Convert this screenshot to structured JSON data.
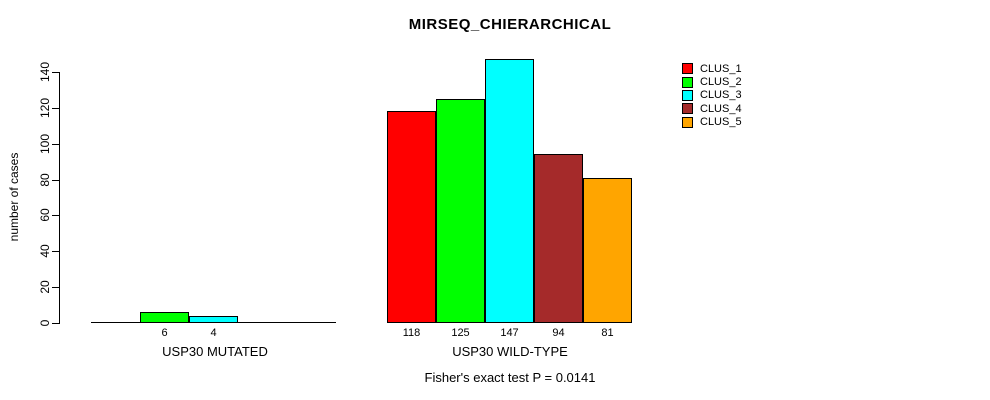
{
  "title": "MIRSEQ_CHIERARCHICAL",
  "footnote": "Fisher's exact test P = 0.0141",
  "y_axis": {
    "label": "number of cases"
  },
  "legend": {
    "position": "topright",
    "items": [
      {
        "label": "CLUS_1",
        "color": "#FF0000"
      },
      {
        "label": "CLUS_2",
        "color": "#00FF00"
      },
      {
        "label": "CLUS_3",
        "color": "#00FFFF"
      },
      {
        "label": "CLUS_4",
        "color": "#A52A2A"
      },
      {
        "label": "CLUS_5",
        "color": "#FFA500"
      }
    ]
  },
  "chart_data": {
    "type": "bar",
    "title": "MIRSEQ_CHIERARCHICAL",
    "categories": [
      "USP30 MUTATED",
      "USP30 WILD-TYPE"
    ],
    "series": [
      {
        "name": "CLUS_1",
        "color": "#FF0000",
        "values": [
          0,
          118
        ]
      },
      {
        "name": "CLUS_2",
        "color": "#00FF00",
        "values": [
          6,
          125
        ]
      },
      {
        "name": "CLUS_3",
        "color": "#00FFFF",
        "values": [
          4,
          147
        ]
      },
      {
        "name": "CLUS_4",
        "color": "#A52A2A",
        "values": [
          0,
          94
        ]
      },
      {
        "name": "CLUS_5",
        "color": "#FFA500",
        "values": [
          0,
          81
        ]
      }
    ],
    "bar_value_labels": [
      [
        "",
        "6",
        "4",
        "",
        ""
      ],
      [
        "118",
        "125",
        "147",
        "94",
        "81"
      ]
    ],
    "xlabel": "",
    "ylabel": "number of cases",
    "ylim": [
      0,
      140
    ],
    "yticks": [
      0,
      20,
      40,
      60,
      80,
      100,
      120,
      140
    ],
    "grid": false,
    "legend_position": "topright",
    "annotation": "Fisher's exact test P = 0.0141"
  }
}
